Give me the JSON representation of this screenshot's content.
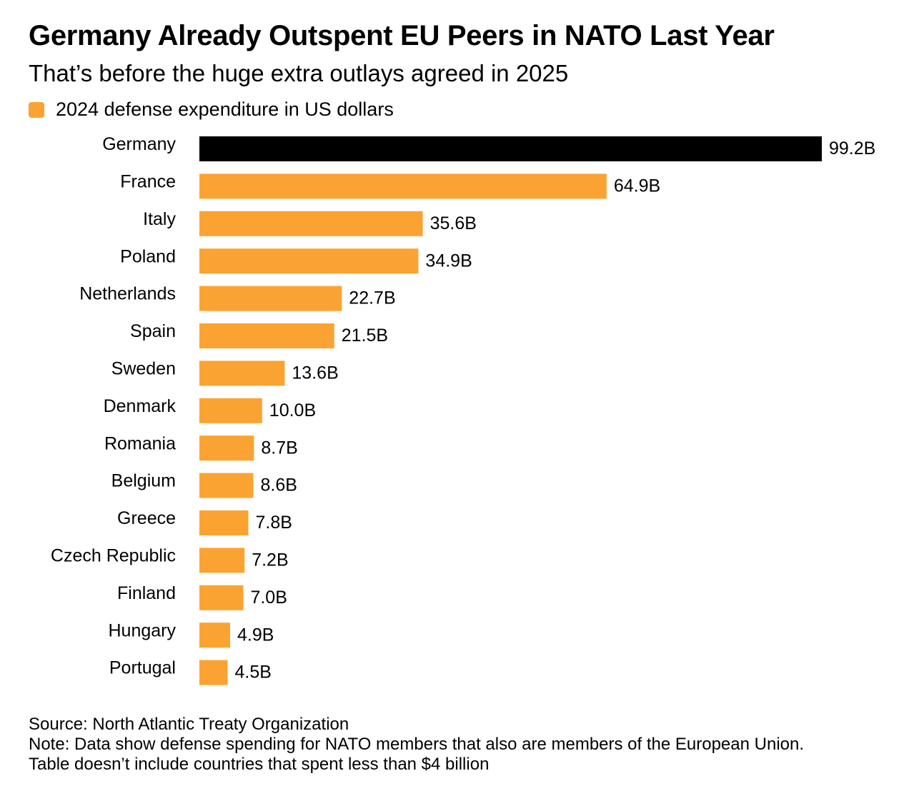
{
  "header": {
    "title": "Germany Already Outspent EU Peers in NATO Last Year",
    "subtitle": "That’s before the huge extra outlays agreed in 2025"
  },
  "legend": {
    "label": "2024 defense expenditure in US dollars",
    "color": "#FBA332"
  },
  "colors": {
    "highlight": "#000000",
    "default": "#FBA332"
  },
  "chart_data": {
    "type": "bar",
    "orientation": "horizontal",
    "categories": [
      "Germany",
      "France",
      "Italy",
      "Poland",
      "Netherlands",
      "Spain",
      "Sweden",
      "Denmark",
      "Romania",
      "Belgium",
      "Greece",
      "Czech Republic",
      "Finland",
      "Hungary",
      "Portugal"
    ],
    "values": [
      99.2,
      64.9,
      35.6,
      34.9,
      22.7,
      21.5,
      13.6,
      10.0,
      8.7,
      8.6,
      7.8,
      7.2,
      7.0,
      4.9,
      4.5
    ],
    "value_labels": [
      "99.2B",
      "64.9B",
      "35.6B",
      "34.9B",
      "22.7B",
      "21.5B",
      "13.6B",
      "10.0B",
      "8.7B",
      "8.6B",
      "7.8B",
      "7.2B",
      "7.0B",
      "4.9B",
      "4.5B"
    ],
    "highlight": [
      "Germany"
    ],
    "series": [
      {
        "name": "2024 defense expenditure in US dollars",
        "values": [
          99.2,
          64.9,
          35.6,
          34.9,
          22.7,
          21.5,
          13.6,
          10.0,
          8.7,
          8.6,
          7.8,
          7.2,
          7.0,
          4.9,
          4.5
        ]
      }
    ],
    "xlim": [
      0,
      99.2
    ],
    "grid": false,
    "legend_position": "top-left"
  },
  "footer": {
    "source": "Source: North Atlantic Treaty Organization",
    "note_line1": "Note: Data show defense spending for NATO members that also are members of the European Union.",
    "note_line2": "Table doesn’t include countries that spent less than $4 billion"
  }
}
